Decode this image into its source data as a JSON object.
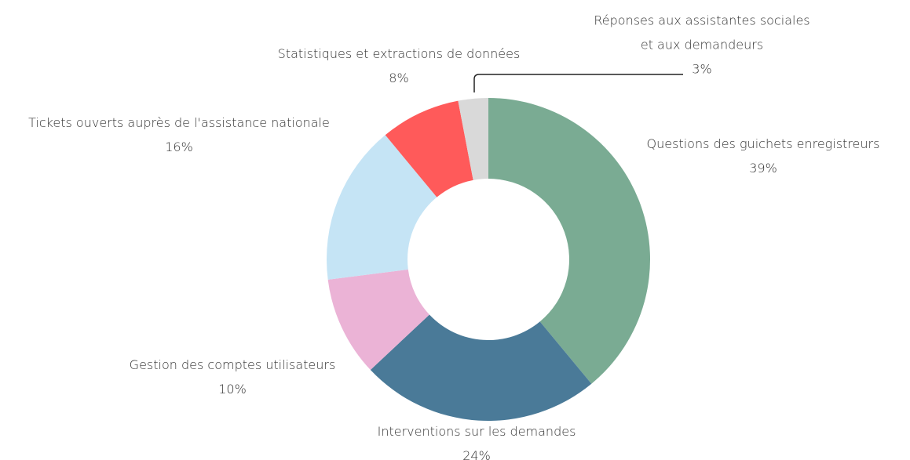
{
  "chart_data": {
    "type": "donut",
    "categories": [
      "Questions des guichets enregistreurs",
      "Interventions sur les demandes",
      "Gestion des comptes utilisateurs",
      "Tickets ouverts auprès de l'assistance nationale",
      "Statistiques et extractions de données",
      "Réponses aux assistantes sociales et aux demandeurs"
    ],
    "values": [
      39,
      24,
      10,
      16,
      8,
      3
    ],
    "value_labels": [
      "39%",
      "24%",
      "10%",
      "16%",
      "8%",
      "3%"
    ],
    "colors": [
      "#7aab93",
      "#4a7a98",
      "#ebb3d6",
      "#c5e4f5",
      "#ff5a5a",
      "#d9d9d9"
    ]
  }
}
